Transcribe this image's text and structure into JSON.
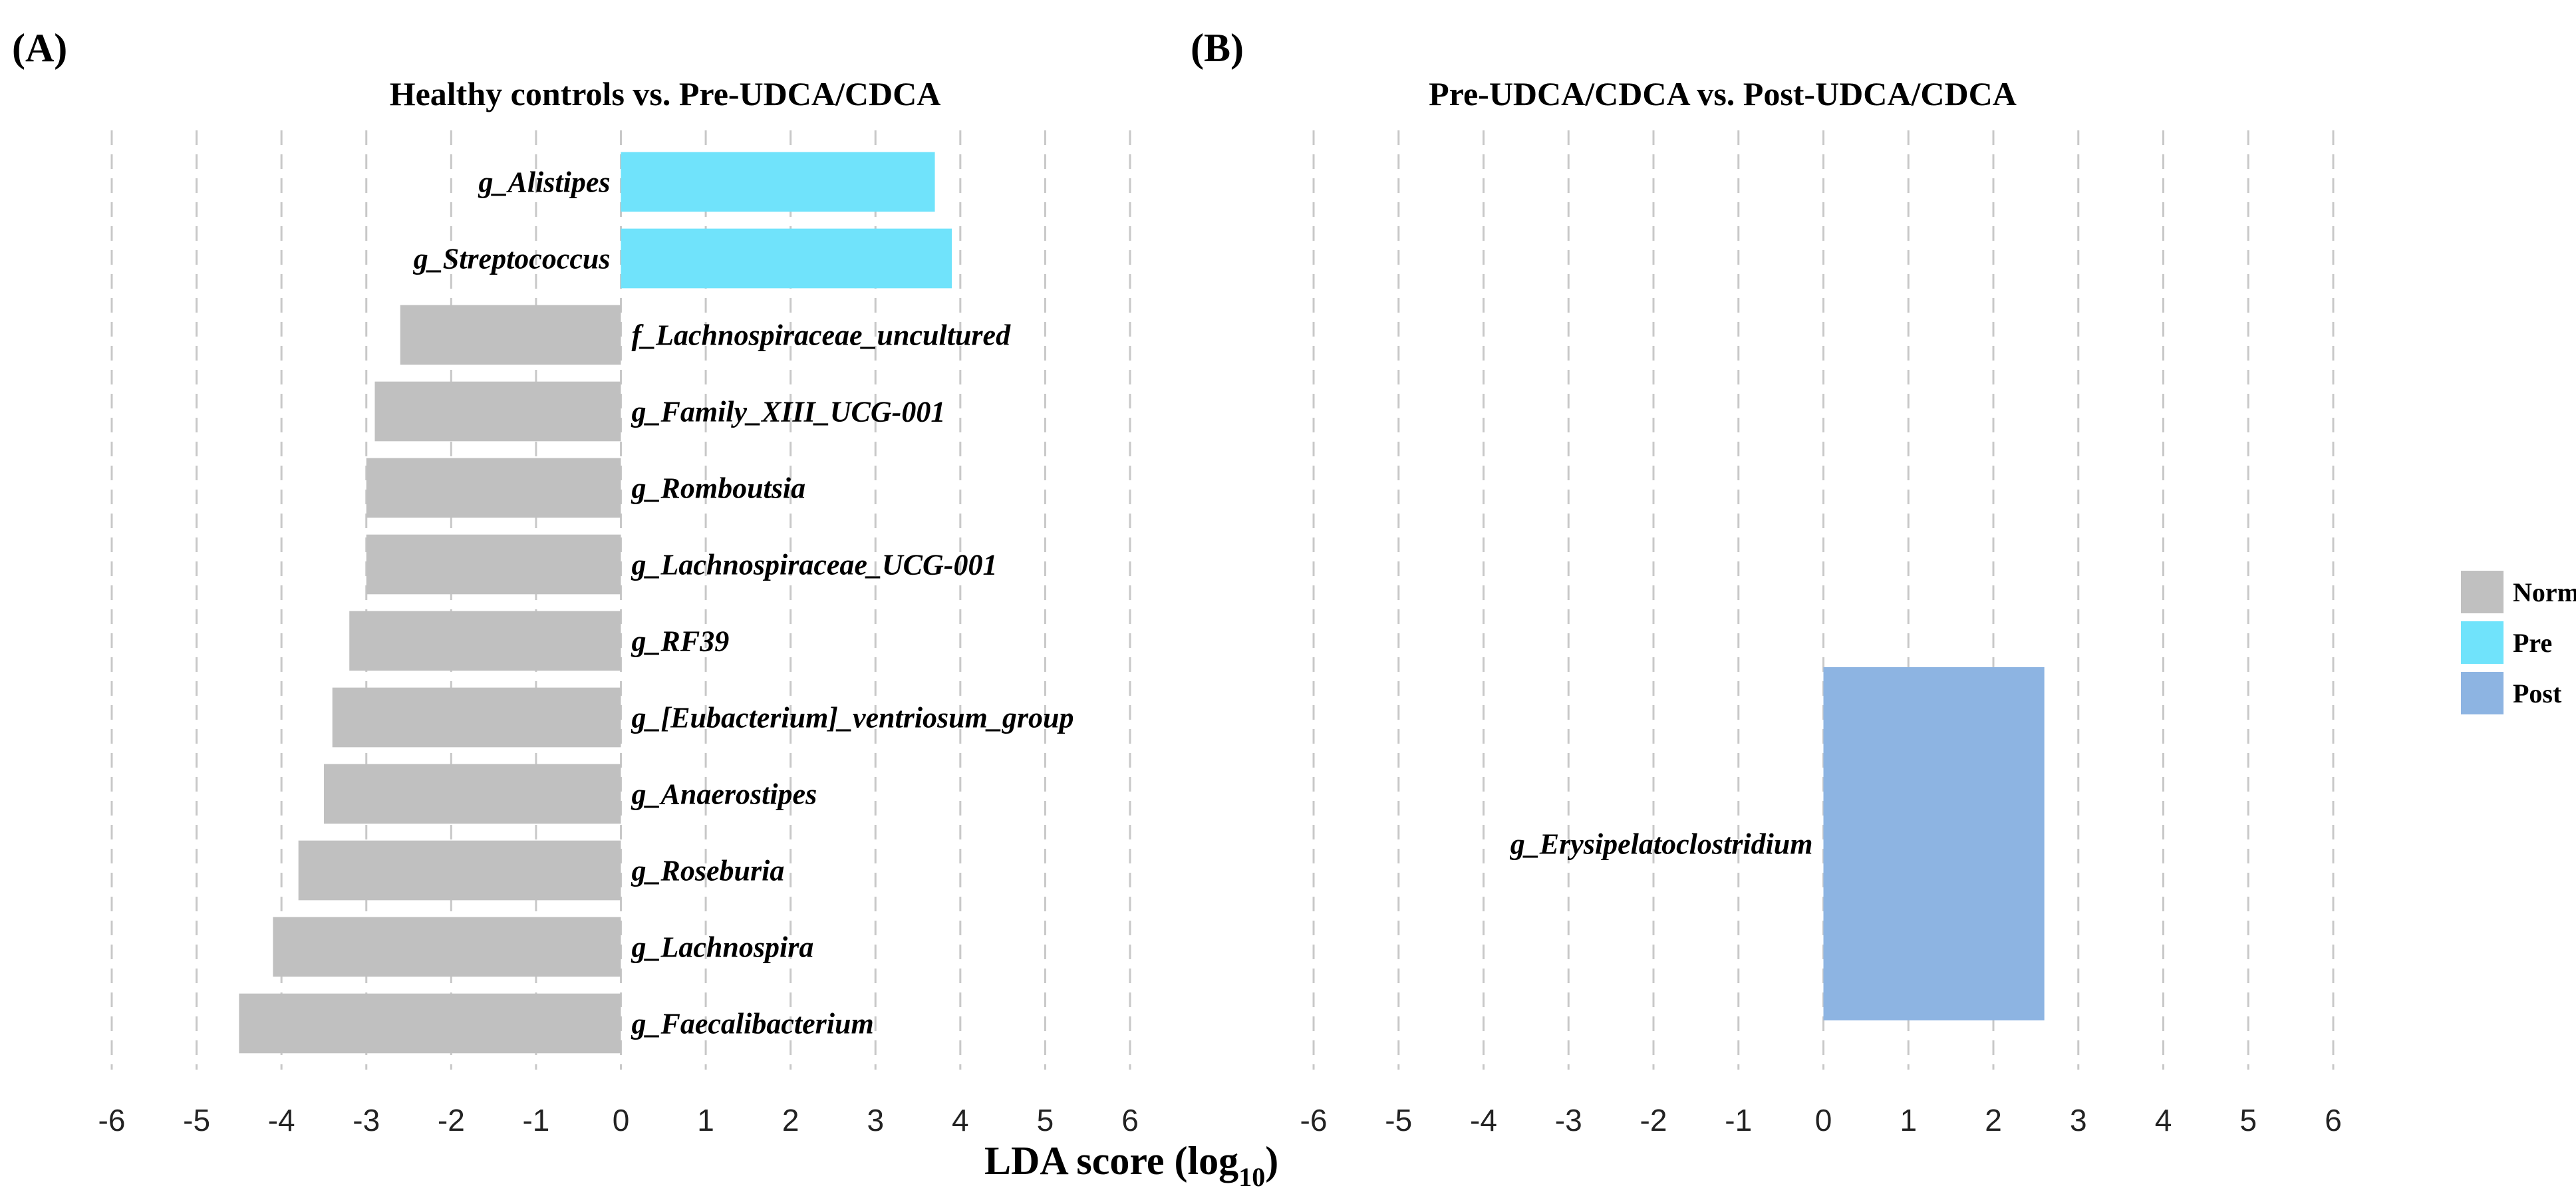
{
  "figure": {
    "xlabel_main": "LDA score (log",
    "xlabel_sub": "10",
    "xlabel_close": ")"
  },
  "colors": {
    "Normal": "#c0c0c0",
    "Pre": "#70e3fb",
    "Post": "#8db4e2"
  },
  "legend": [
    {
      "label": "Normal",
      "color": "#c0c0c0"
    },
    {
      "label": "Pre",
      "color": "#70e3fb"
    },
    {
      "label": "Post",
      "color": "#8db4e2"
    }
  ],
  "chart_data": [
    {
      "type": "bar",
      "orientation": "horizontal",
      "panel_label": "(A)",
      "title": "Healthy controls vs. Pre-UDCA/CDCA",
      "xlim": [
        -6,
        6
      ],
      "xticks": [
        -6,
        -5,
        -4,
        -3,
        -2,
        -1,
        0,
        1,
        2,
        3,
        4,
        5,
        6
      ],
      "grid": true,
      "categories": [
        "g_Alistipes",
        "g_Streptococcus",
        "f_Lachnospiraceae_uncultured",
        "g_Family_XIII_UCG-001",
        "g_Romboutsia",
        "g_Lachnospiraceae_UCG-001",
        "g_RF39",
        "g_[Eubacterium]_ventriosum_group",
        "g_Anaerostipes",
        "g_Roseburia",
        "g_Lachnospira",
        "g_Faecalibacterium"
      ],
      "values": [
        3.7,
        3.9,
        -2.6,
        -2.9,
        -3.0,
        -3.0,
        -3.2,
        -3.4,
        -3.5,
        -3.8,
        -4.1,
        -4.5
      ],
      "groups": [
        "Pre",
        "Pre",
        "Normal",
        "Normal",
        "Normal",
        "Normal",
        "Normal",
        "Normal",
        "Normal",
        "Normal",
        "Normal",
        "Normal"
      ]
    },
    {
      "type": "bar",
      "orientation": "horizontal",
      "panel_label": "(B)",
      "title": "Pre-UDCA/CDCA vs. Post-UDCA/CDCA",
      "xlim": [
        -6,
        6
      ],
      "xticks": [
        -6,
        -5,
        -4,
        -3,
        -2,
        -1,
        0,
        1,
        2,
        3,
        4,
        5,
        6
      ],
      "grid": true,
      "categories": [
        "g_Erysipelatoclostridium"
      ],
      "values": [
        2.6
      ],
      "groups": [
        "Post"
      ]
    }
  ]
}
